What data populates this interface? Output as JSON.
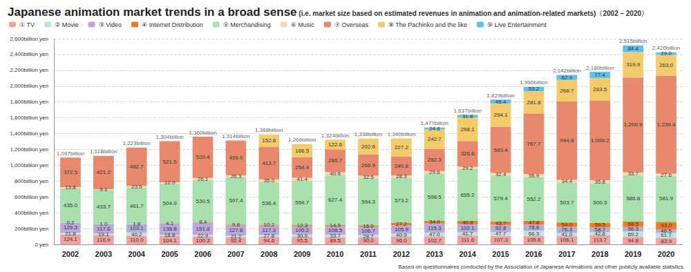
{
  "chart_data": {
    "type": "bar",
    "title": "Japanese animation market trends in a broad sense",
    "subtitle": "(i.e. market size based on estimated revenues in animation and animation-related markets)〈2002 – 2020〉",
    "note": "Based on questionnaires conducted by the Association of Japanese Animations and other publicly available statistics",
    "stacked": true,
    "data_labels": true,
    "grid": true,
    "legend": "top",
    "categories": [
      "2002",
      "2003",
      "2004",
      "2005",
      "2006",
      "2007",
      "2008",
      "2009",
      "2010",
      "2011",
      "2012",
      "2013",
      "2014",
      "2015",
      "2016",
      "2017",
      "2018",
      "2019",
      "2020"
    ],
    "ylim": [
      0,
      2600
    ],
    "yticks": [
      {
        "value": 0,
        "label": "0 yen"
      },
      {
        "value": 200,
        "label": "200billion yen"
      },
      {
        "value": 400,
        "label": "400billion yen"
      },
      {
        "value": 600,
        "label": "600billion yen"
      },
      {
        "value": 800,
        "label": "800billion yen"
      },
      {
        "value": 1000,
        "label": "1,000billion yen"
      },
      {
        "value": 1200,
        "label": "1,200billion yen"
      },
      {
        "value": 1400,
        "label": "1,400billion yen"
      },
      {
        "value": 1600,
        "label": "1,600billion yen"
      },
      {
        "value": 1800,
        "label": "1,800billion yen"
      },
      {
        "value": 2000,
        "label": "2,000billion yen"
      },
      {
        "value": 2200,
        "label": "2,200billion yen"
      },
      {
        "value": 2400,
        "label": "2,400billion yen"
      },
      {
        "value": 2600,
        "label": "2,600billion yen"
      }
    ],
    "totals": [
      1097,
      1118,
      1223,
      1304,
      1360,
      1314,
      1388,
      1266,
      1324,
      1338,
      1340,
      1477,
      1637,
      1829,
      1990,
      2142,
      2180,
      2515,
      2426
    ],
    "total_labels": [
      "1,097billion",
      "1,118billion",
      "1,223billion",
      "1,304billion",
      "1,360billion",
      "1,314billion",
      "1,388billion",
      "1,266billion",
      "1,324billion",
      "1,338billion",
      "1,340billion",
      "1,477billion",
      "1,637billion",
      "1,829billion",
      "1,990billion",
      "2,142billion",
      "2,180billion",
      "2,515billion",
      "2,426billion"
    ],
    "series": [
      {
        "name": "① TV",
        "color": "#f3a19e",
        "values": [
          124.1,
          116.9,
          110.0,
          104.1,
          100.3,
          92.4,
          94.6,
          95.5,
          89.5,
          90.0,
          96.0,
          102.7,
          111.6,
          107.3,
          105.6,
          106.1,
          113.7,
          94.8,
          83.9
        ],
        "value_labels": [
          "124.1",
          "116.9",
          "110.0",
          "104.1",
          "100.3",
          "92.4",
          "94.6",
          "95.5",
          "89.5",
          "90.0",
          "96.0",
          "102.7",
          "111.6",
          "107.3",
          "105.6",
          "106.1",
          "113.7",
          "94.8",
          "83.9"
        ]
      },
      {
        "name": "② Movie",
        "color": "#bfe4df",
        "values": [
          21.8,
          19.1,
          40.2,
          18.8,
          22.9,
          21.2,
          27.8,
          30.9,
          33.7,
          28.7,
          40.9,
          47.0,
          41.7,
          47.7,
          66.3,
          41.0,
          42.6,
          69.2,
          61.7
        ],
        "value_labels": [
          "21.8",
          "19.1",
          "40.2",
          "18.8",
          "22.9",
          "21.2",
          "27.8",
          "30.9",
          "33.7",
          "28.7",
          "40.9",
          "47.0",
          "41.7",
          "47.7",
          "66.3",
          "41.0",
          "42.6",
          "69.2",
          "61.7"
        ]
      },
      {
        "name": "③ Video",
        "color": "#b9a9da",
        "values": [
          129.3,
          117.6,
          103.1,
          138.8,
          151.8,
          127.8,
          117.3,
          105.2,
          108.5,
          106.7,
          105.9,
          115.3,
          102.1,
          92.8,
          78.8,
          76.3,
          58.7,
          56.3,
          46.5
        ],
        "value_labels": [
          "129.3",
          "117.6",
          "103.1",
          "138.8",
          "151.8",
          "127.8",
          "117.3",
          "105.2",
          "108.5",
          "106.7",
          "105.9",
          "115.3",
          "102.1",
          "92.8",
          "78.8",
          "76.3",
          "58.7",
          "56.3",
          "46.5"
        ]
      },
      {
        "name": "④ Internet Distribution",
        "color": "#ee7c22",
        "values": [
          0.2,
          1.0,
          1.8,
          4.1,
          8.4,
          9.8,
          10.2,
          12.3,
          14.9,
          16.0,
          27.2,
          34.0,
          40.8,
          43.7,
          47.8,
          54.0,
          59.5,
          68.5,
          93.0
        ],
        "value_labels": [
          "0.2",
          "1.0",
          "1.8",
          "4.1",
          "8.4",
          "9.8",
          "10.2",
          "12.3",
          "14.9",
          "16.0",
          "27.2",
          "34.0",
          "40.8",
          "43.7",
          "47.8",
          "54.0",
          "59.5",
          "68.5",
          "93.0"
        ]
      },
      {
        "name": "⑤ Merchandising",
        "color": "#a8e0ae",
        "values": [
          435.0,
          433.7,
          461.7,
          504.9,
          530.5,
          597.4,
          536.4,
          559.7,
          627.4,
          594.3,
          573.2,
          598.5,
          655.2,
          579.4,
          552.2,
          503.7,
          500.3,
          586.8,
          581.9
        ],
        "value_labels": [
          "435.0",
          "433.7",
          "461.7",
          "504.9",
          "530.5",
          "597.4",
          "536.4",
          "559.7",
          "627.4",
          "594.3",
          "573.2",
          "598.5",
          "655.2",
          "579.4",
          "552.2",
          "503.7",
          "500.3",
          "586.8",
          "581.9"
        ]
      },
      {
        "name": "⑥ Music",
        "color": "#f6d9b3",
        "values": [
          13.8,
          9.1,
          23.5,
          12.0,
          26.1,
          26.3,
          35.0,
          41.4,
          40.6,
          32.5,
          28.3,
          29.6,
          29.2,
          32.4,
          36.9,
          34.4,
          35.8,
          33.7,
          27.6
        ],
        "value_labels": [
          "13.8",
          "9.1",
          "23.5",
          "12.0",
          "26.1",
          "26.3",
          "35.0",
          "41.4",
          "40.6",
          "32.5",
          "28.3",
          "29.6",
          "29.2",
          "32.4",
          "36.9",
          "34.4",
          "35.8",
          "33.7",
          "27.6"
        ]
      },
      {
        "name": "⑦ Overseas",
        "color": "#e8896e",
        "values": [
          372.5,
          421.2,
          482.7,
          521.5,
          520.4,
          439.0,
          413.7,
          254.4,
          286.7,
          266.9,
          240.8,
          282.3,
          326.6,
          583.4,
          767.7,
          994.8,
          1009.2,
          1200.9,
          1239.4
        ],
        "value_labels": [
          "372.5",
          "421.2",
          "482.7",
          "521.5",
          "520.4",
          "439.0",
          "413.7",
          "254.4",
          "286.7",
          "266.9",
          "240.8",
          "282.3",
          "326.6",
          "583.4",
          "767.7",
          "994.8",
          "1,009.2",
          "1,200.9",
          "1,239.4"
        ]
      },
      {
        "name": "⑧ The Pachinko and the like",
        "color": "#f4cb6a",
        "values": [
          null,
          null,
          null,
          null,
          null,
          null,
          152.8,
          166.5,
          122.6,
          202.6,
          227.2,
          242.7,
          298.1,
          294.1,
          281.8,
          268.7,
          283.5,
          319.9,
          263.0
        ],
        "value_labels": [
          null,
          null,
          null,
          null,
          null,
          null,
          "152.8",
          "166.5",
          "122.6",
          "202.6",
          "227.2",
          "242.7",
          "298.1",
          "294.1",
          "281.8",
          "268.7",
          "283.5",
          "319.9",
          "263.0"
        ]
      },
      {
        "name": "⑨ Live Entertainment",
        "color": "#5bc2ea",
        "values": [
          null,
          null,
          null,
          null,
          null,
          null,
          null,
          null,
          null,
          null,
          null,
          24.8,
          31.8,
          48.4,
          53.2,
          62.9,
          77.4,
          84.4,
          29.0
        ],
        "value_labels": [
          null,
          null,
          null,
          null,
          null,
          null,
          null,
          null,
          null,
          null,
          null,
          "24.8",
          "31.8",
          "48.4",
          "53.2",
          "62.9",
          "77.4",
          "84.4",
          "29.0"
        ]
      }
    ]
  }
}
